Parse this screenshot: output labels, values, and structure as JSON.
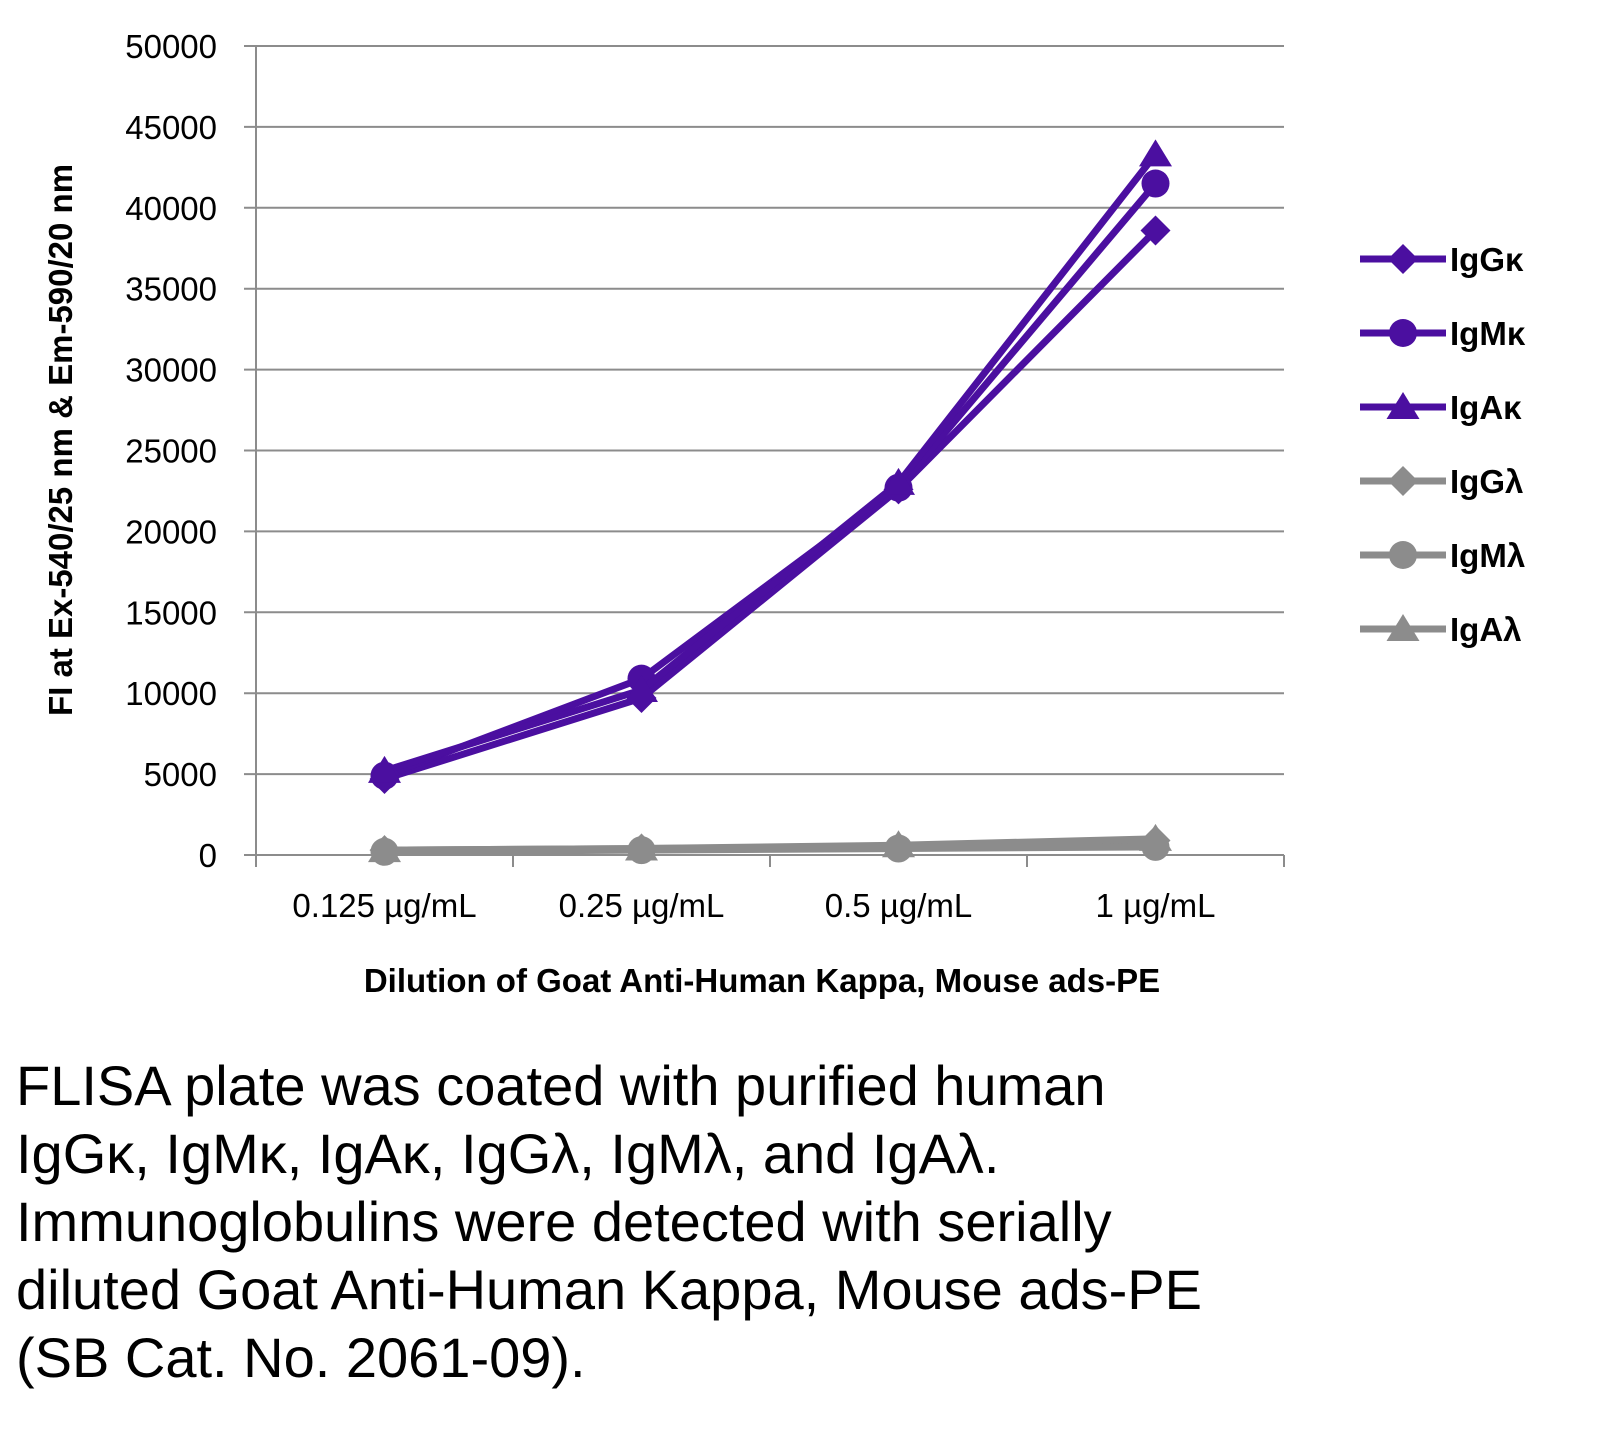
{
  "chart_data": {
    "type": "line",
    "xlabel": "Dilution of Goat Anti-Human Kappa, Mouse ads-PE",
    "ylabel": "FI at Ex-540/25 nm & Em-590/20 nm",
    "categories": [
      "0.125 µg/mL",
      "0.25 µg/mL",
      "0.5 µg/mL",
      "1 µg/mL"
    ],
    "ylim": [
      0,
      50000
    ],
    "yticks": [
      "0",
      "5000",
      "10000",
      "15000",
      "20000",
      "25000",
      "30000",
      "35000",
      "40000",
      "45000",
      "50000"
    ],
    "grid": "horizontal",
    "legend_position": "right",
    "series": [
      {
        "name": "IgGκ",
        "marker": "diamond",
        "color": "#4b0fa0",
        "values": [
          4700,
          9700,
          22600,
          38600
        ]
      },
      {
        "name": "IgMκ",
        "marker": "circle",
        "color": "#4b0fa0",
        "values": [
          4900,
          10900,
          22700,
          41500
        ]
      },
      {
        "name": "IgAκ",
        "marker": "triangle",
        "color": "#4b0fa0",
        "values": [
          5200,
          10200,
          23000,
          43300
        ]
      },
      {
        "name": "IgGλ",
        "marker": "diamond",
        "color": "#8c8c8c",
        "values": [
          300,
          400,
          500,
          900
        ]
      },
      {
        "name": "IgMλ",
        "marker": "circle",
        "color": "#8c8c8c",
        "values": [
          200,
          300,
          400,
          500
        ]
      },
      {
        "name": "IgAλ",
        "marker": "triangle",
        "color": "#8c8c8c",
        "values": [
          300,
          400,
          600,
          1000
        ]
      }
    ]
  },
  "caption": {
    "lines": [
      "FLISA plate was coated with purified human",
      "IgGκ, IgMκ, IgAκ, IgGλ, IgMλ, and IgAλ.",
      "Immunoglobulins were detected with serially",
      "diluted Goat Anti-Human Kappa, Mouse ads-PE",
      "(SB Cat. No. 2061-09)."
    ]
  }
}
